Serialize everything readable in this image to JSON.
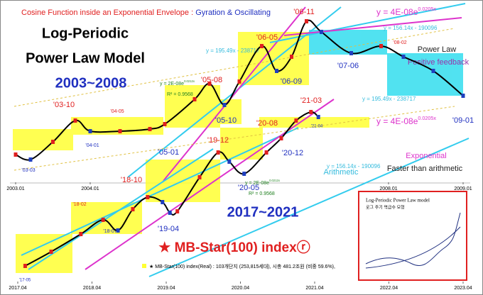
{
  "title_red": "Cosine Function inside an Exponential Envelope : ",
  "title_blue": "Gyration & Oscillating",
  "headings": [
    "Log-Periodic",
    "Power Law Model",
    "2003~2008",
    "2017~2021",
    "★ MB-Star(100) indexⓡ"
  ],
  "annotations": [
    "'03-10",
    "'04-05",
    "'04-01",
    "'03-03",
    "'05-01",
    "'05-08",
    "'05-10",
    "'06-05",
    "'06-09",
    "'06-11",
    "'07-06",
    "'08-02",
    "'09-01",
    "'18-10",
    "'18-02",
    "'18-07",
    "'19-04",
    "'19-12",
    "'20-05",
    "'20-08",
    "'20-12",
    "'21-03",
    "'21-04",
    "'17-05"
  ],
  "equations": [
    {
      "text": "y = 4E-08e",
      "sup": "0.0205x"
    },
    {
      "text": "y = 156.14x - 190096"
    },
    {
      "text": "y = 195.49x - 238717"
    },
    {
      "text": "y = 2E-08e",
      "sup": "0.0212x"
    },
    {
      "text": "y = 195.49x - 238717"
    },
    {
      "text": "y = 4E-08e",
      "sup": "0.0205x"
    },
    {
      "text": "y = 156.14x - 190096"
    },
    {
      "text": "y = 2E-08e",
      "sup": "0.0212x"
    }
  ],
  "r_squared": [
    "R² = 0.9568",
    "R² = 0.9568"
  ],
  "notes": [
    "Power Law",
    "Positive feedback",
    "Exponential",
    "Faster than arithmetic",
    "Arithmetic"
  ],
  "legend": "MB-Star(100) index(Real) : 103개단지 (253,815세대),   시총 481.2조원 (비중 59.6%),",
  "inset": {
    "title": "Log-Periodic Power Law model",
    "subtitle": "로그 주기 멱급수 모형"
  },
  "chart_data": [
    {
      "type": "line",
      "color": "#000000",
      "marker_color": "#1f3fbf",
      "x": [
        2003.0,
        2003.2,
        2003.5,
        2003.8,
        2004.0,
        2004.4,
        2004.8,
        2005.0,
        2005.4,
        2005.6,
        2005.8,
        2006.0,
        2006.3,
        2006.5,
        2006.7,
        2006.9,
        2007.1,
        2007.5,
        2007.9,
        2008.2,
        2008.6,
        2009.0
      ],
      "values": [
        8750,
        8625,
        9071,
        9607,
        9339,
        9339,
        9393,
        9518,
        10143,
        10536,
        10000,
        10589,
        11482,
        10857,
        11214,
        12107,
        11839,
        11304,
        11482,
        11214,
        10857,
        10232
      ],
      "xlim": [
        2003.0,
        2009.0
      ],
      "ylim": [
        8000,
        12500
      ],
      "xticks": [
        {
          "value": 2003.0,
          "label": "2003.01"
        },
        {
          "value": 2004.0,
          "label": "2004.01"
        },
        {
          "value": 2008.0,
          "label": "2008.01"
        },
        {
          "value": 2009.0,
          "label": "2009.01"
        }
      ]
    },
    {
      "type": "line",
      "color": "#000000",
      "marker_color": "#1f3fbf",
      "x": [
        2017.35,
        2017.7,
        2018.1,
        2018.4,
        2018.6,
        2018.8,
        2019.0,
        2019.2,
        2019.3,
        2019.4,
        2019.7,
        2019.95,
        2020.1,
        2020.3,
        2020.6,
        2020.8,
        2021.0,
        2021.2,
        2021.3
      ],
      "values": [
        9383,
        9689,
        10071,
        10378,
        10148,
        10607,
        10867,
        10760,
        10531,
        10561,
        11296,
        11832,
        11633,
        11372,
        11832,
        12138,
        12520,
        12704,
        12597
      ],
      "xlim": [
        2017.25,
        2023.25
      ],
      "ylim": [
        9000,
        15000
      ],
      "xticks": [
        {
          "value": 2017.25,
          "label": "2017.04"
        },
        {
          "value": 2018.25,
          "label": "2018.04"
        },
        {
          "value": 2019.25,
          "label": "2019.04"
        },
        {
          "value": 2020.25,
          "label": "2020.04"
        },
        {
          "value": 2021.25,
          "label": "2021.04"
        },
        {
          "value": 2022.25,
          "label": "2022.04"
        },
        {
          "value": 2023.25,
          "label": "2023.04"
        }
      ]
    }
  ]
}
